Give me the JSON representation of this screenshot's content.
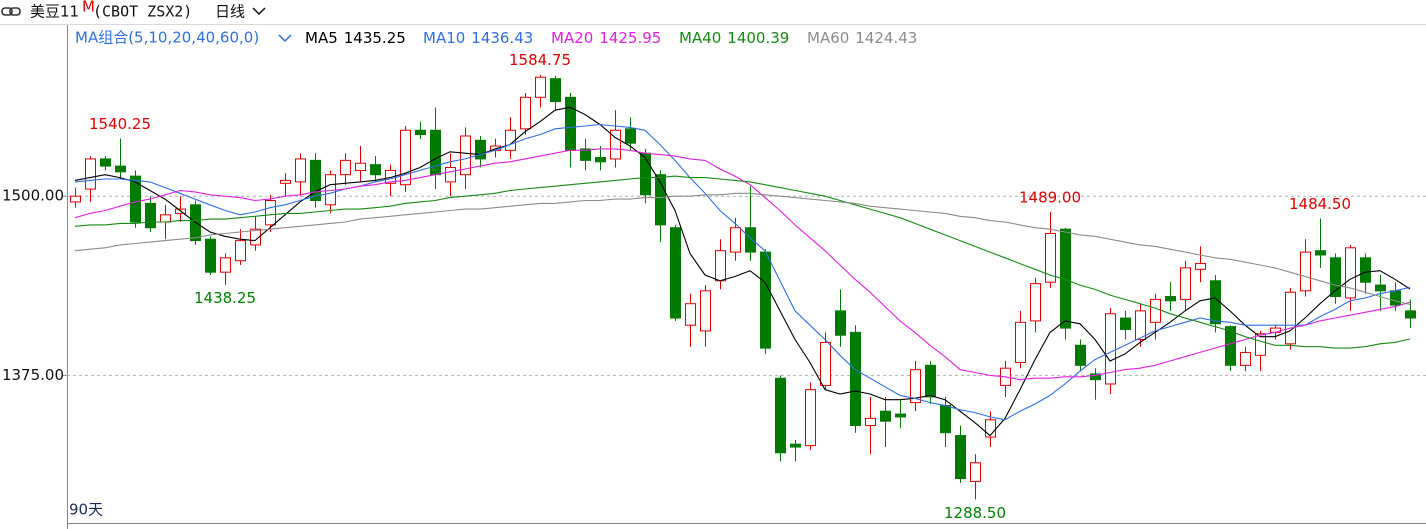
{
  "header": {
    "title": "美豆11",
    "badge": "M",
    "code": "(CBOT ZSX2)",
    "period": "日线"
  },
  "chart_data": {
    "type": "candlestick",
    "legend_title": "MA组合(5,10,20,40,60,0)",
    "footer": "90天",
    "ylim": [
      1272,
      1602
    ],
    "yticks": [
      {
        "value": 1500,
        "label": "1500.00"
      },
      {
        "value": 1375,
        "label": "1375.00"
      }
    ],
    "grid": true,
    "up_color": "#e00000",
    "down_color": "#007a00",
    "open": [
      1496,
      1505,
      1526,
      1521,
      1514,
      1495,
      1482,
      1488,
      1494,
      1470,
      1447,
      1455,
      1466,
      1480,
      1509,
      1510,
      1525,
      1494,
      1515,
      1518,
      1522,
      1509,
      1508,
      1546,
      1546,
      1510,
      1515,
      1539,
      1532,
      1532,
      1547,
      1569,
      1582,
      1569,
      1533,
      1527,
      1526,
      1547,
      1530,
      1515,
      1478,
      1410,
      1406,
      1441,
      1461,
      1478,
      1461,
      1373,
      1327,
      1326,
      1368,
      1420,
      1405,
      1340,
      1350,
      1348,
      1356,
      1382,
      1354,
      1333,
      1301,
      1332,
      1368,
      1384,
      1413,
      1440,
      1477,
      1396,
      1376,
      1369,
      1415,
      1400,
      1412,
      1430,
      1428,
      1449,
      1441,
      1409,
      1382,
      1389,
      1405,
      1397,
      1434,
      1462,
      1457,
      1429,
      1457,
      1438,
      1434,
      1420
    ],
    "high": [
      1506,
      1528,
      1528,
      1540.25,
      1518,
      1500,
      1494,
      1500,
      1497,
      1472,
      1460,
      1477,
      1486,
      1501,
      1516,
      1530,
      1530,
      1518,
      1530,
      1535,
      1528,
      1522,
      1549,
      1552,
      1562,
      1530,
      1548,
      1542,
      1540,
      1555,
      1572,
      1584.75,
      1584,
      1572,
      1540,
      1535,
      1560,
      1555,
      1533,
      1518,
      1480,
      1432,
      1438,
      1470,
      1485,
      1507,
      1463,
      1375,
      1330,
      1370,
      1405,
      1435,
      1410,
      1360,
      1360,
      1358,
      1385,
      1385,
      1360,
      1340,
      1320,
      1350,
      1385,
      1420,
      1443,
      1489,
      1478,
      1400,
      1380,
      1422,
      1420,
      1425,
      1432,
      1440,
      1455,
      1465,
      1445,
      1410,
      1395,
      1406,
      1410,
      1436,
      1470,
      1484.5,
      1460,
      1466,
      1460,
      1445,
      1440,
      1428
    ],
    "low": [
      1492,
      1496,
      1518,
      1512,
      1478,
      1475,
      1470,
      1482,
      1466,
      1445,
      1438.25,
      1452,
      1462,
      1475,
      1500,
      1500,
      1492,
      1488,
      1508,
      1510,
      1510,
      1500,
      1503,
      1540,
      1505,
      1500,
      1505,
      1520,
      1527,
      1526,
      1543,
      1562,
      1560,
      1520,
      1518,
      1518,
      1520,
      1532,
      1495,
      1468,
      1413,
      1395,
      1395,
      1435,
      1455,
      1455,
      1390,
      1315,
      1315,
      1323,
      1365,
      1395,
      1335,
      1320,
      1325,
      1338,
      1350,
      1355,
      1325,
      1300,
      1288.5,
      1325,
      1360,
      1380,
      1405,
      1436,
      1400,
      1378,
      1358,
      1362,
      1400,
      1395,
      1400,
      1420,
      1420,
      1440,
      1405,
      1378,
      1378,
      1378,
      1400,
      1393,
      1430,
      1450,
      1425,
      1420,
      1432,
      1420,
      1420,
      1408
    ],
    "close": [
      1500,
      1526,
      1521,
      1517,
      1482,
      1478,
      1487,
      1491,
      1469,
      1447,
      1457,
      1469,
      1477,
      1497,
      1511,
      1526,
      1497,
      1515,
      1525,
      1523,
      1515,
      1518,
      1546,
      1543,
      1515,
      1520,
      1542,
      1526,
      1535,
      1546,
      1569,
      1583,
      1566,
      1532,
      1525,
      1524,
      1546,
      1537,
      1501,
      1480,
      1415,
      1425,
      1434,
      1462,
      1478,
      1461,
      1394,
      1321,
      1325,
      1365,
      1398,
      1403,
      1340,
      1345,
      1343,
      1346,
      1379,
      1360,
      1335,
      1303,
      1314,
      1344,
      1380,
      1412,
      1439,
      1474,
      1408,
      1382,
      1372,
      1418,
      1407,
      1420,
      1428,
      1427,
      1450,
      1453,
      1411,
      1382,
      1391,
      1404,
      1408,
      1433,
      1461,
      1459,
      1430,
      1464,
      1440,
      1434,
      1424,
      1415
    ],
    "series": [
      {
        "name": "MA5",
        "color": "#000000",
        "values": [
          1511,
          1513,
          1515,
          1513,
          1510,
          1504,
          1498,
          1490,
          1482,
          1475,
          1472,
          1470,
          1469,
          1478,
          1487,
          1496,
          1503,
          1508,
          1509,
          1510,
          1511,
          1513,
          1516,
          1520,
          1526,
          1531,
          1530,
          1529,
          1533,
          1536,
          1545,
          1552,
          1560,
          1562,
          1557,
          1550,
          1541,
          1535,
          1527,
          1510,
          1490,
          1460,
          1445,
          1441,
          1444,
          1448,
          1440,
          1420,
          1400,
          1384,
          1365,
          1362,
          1364,
          1362,
          1358,
          1358,
          1359,
          1361,
          1358,
          1350,
          1342,
          1333,
          1345,
          1365,
          1386,
          1405,
          1413,
          1411,
          1400,
          1385,
          1390,
          1398,
          1405,
          1412,
          1420,
          1427,
          1429,
          1420,
          1410,
          1402,
          1402,
          1406,
          1415,
          1425,
          1434,
          1442,
          1447,
          1448,
          1442,
          1435.25
        ]
      },
      {
        "name": "MA10",
        "color": "#2f6fe0",
        "values": [
          1510,
          1511,
          1512,
          1512,
          1511,
          1510,
          1506,
          1502,
          1498,
          1494,
          1490,
          1487,
          1489,
          1492,
          1494,
          1497,
          1500,
          1502,
          1505,
          1507,
          1510,
          1512,
          1515,
          1518,
          1521,
          1524,
          1526,
          1529,
          1532,
          1536,
          1540,
          1543,
          1547,
          1548,
          1549,
          1550,
          1549,
          1548,
          1546,
          1536,
          1525,
          1513,
          1502,
          1490,
          1481,
          1471,
          1462,
          1441,
          1420,
          1410,
          1400,
          1389,
          1379,
          1373,
          1367,
          1361,
          1359,
          1356,
          1354,
          1351,
          1349,
          1346,
          1344,
          1350,
          1355,
          1361,
          1369,
          1378,
          1386,
          1391,
          1396,
          1401,
          1406,
          1409,
          1412,
          1415,
          1413,
          1412,
          1410,
          1410,
          1410,
          1410,
          1410,
          1416,
          1421,
          1427,
          1429,
          1432,
          1434,
          1436.43
        ]
      },
      {
        "name": "MA20",
        "color": "#e020e0",
        "values": [
          1485,
          1488,
          1490,
          1493,
          1496,
          1498,
          1501,
          1504,
          1503,
          1501,
          1500,
          1499,
          1497,
          1498,
          1500,
          1501,
          1503,
          1504,
          1505,
          1507,
          1508,
          1510,
          1511,
          1513,
          1515,
          1517,
          1519,
          1521,
          1523,
          1524,
          1526,
          1528,
          1530,
          1532,
          1532,
          1533,
          1533,
          1532,
          1530,
          1529,
          1528,
          1526,
          1525,
          1519,
          1514,
          1508,
          1499,
          1490,
          1480,
          1471,
          1462,
          1452,
          1442,
          1433,
          1423,
          1413,
          1405,
          1396,
          1388,
          1379,
          1377,
          1375,
          1374,
          1372,
          1373,
          1373,
          1374,
          1374,
          1375,
          1377,
          1379,
          1380,
          1382,
          1385,
          1388,
          1391,
          1394,
          1397,
          1400,
          1403,
          1405,
          1408,
          1410,
          1413,
          1415,
          1417,
          1419,
          1421,
          1423,
          1425.95
        ]
      },
      {
        "name": "MA40",
        "color": "#148c14",
        "values": [
          1479,
          1480,
          1480,
          1481,
          1481,
          1482,
          1482,
          1483,
          1483,
          1484,
          1484,
          1485,
          1486,
          1487,
          1488,
          1488,
          1489,
          1490,
          1491,
          1491,
          1492,
          1493,
          1495,
          1496,
          1497,
          1499,
          1500,
          1501,
          1502,
          1504,
          1505,
          1506,
          1507,
          1508,
          1509,
          1510,
          1511,
          1512,
          1513,
          1513,
          1514,
          1513,
          1513,
          1512,
          1511,
          1510,
          1508,
          1506,
          1504,
          1502,
          1500,
          1497,
          1494,
          1491,
          1488,
          1485,
          1481,
          1477,
          1473,
          1469,
          1465,
          1461,
          1457,
          1453,
          1449,
          1445,
          1442,
          1438,
          1435,
          1431,
          1428,
          1425,
          1422,
          1418,
          1415,
          1412,
          1409,
          1406,
          1402,
          1399,
          1396,
          1396,
          1395,
          1395,
          1394,
          1394,
          1395,
          1397,
          1398,
          1400.39
        ]
      },
      {
        "name": "MA60",
        "color": "#8c8c8c",
        "values": [
          1462,
          1463,
          1464,
          1466,
          1467,
          1468,
          1469,
          1470,
          1471,
          1473,
          1474,
          1475,
          1476,
          1477,
          1478,
          1479,
          1480,
          1481,
          1482,
          1484,
          1485,
          1486,
          1487,
          1488,
          1489,
          1490,
          1491,
          1491,
          1492,
          1493,
          1494,
          1495,
          1495,
          1496,
          1497,
          1497,
          1498,
          1498,
          1499,
          1499,
          1500,
          1500,
          1501,
          1501,
          1502,
          1502,
          1501,
          1500,
          1499,
          1498,
          1497,
          1496,
          1495,
          1493,
          1492,
          1491,
          1490,
          1489,
          1488,
          1486,
          1485,
          1483,
          1482,
          1480,
          1478,
          1477,
          1475,
          1473,
          1472,
          1470,
          1468,
          1466,
          1465,
          1463,
          1461,
          1459,
          1457,
          1456,
          1454,
          1452,
          1450,
          1447,
          1444,
          1441,
          1438,
          1436,
          1433,
          1430,
          1427,
          1424.43
        ]
      }
    ],
    "annotations": [
      {
        "label": "1540.25",
        "value": 1540.25,
        "x": 3,
        "color": "#e00000"
      },
      {
        "label": "1438.25",
        "value": 1438.25,
        "x": 10,
        "color": "#008000"
      },
      {
        "label": "1584.75",
        "value": 1584.75,
        "x": 31,
        "color": "#e00000"
      },
      {
        "label": "1288.50",
        "value": 1288.5,
        "x": 60,
        "color": "#008000"
      },
      {
        "label": "1489.00",
        "value": 1489,
        "x": 65,
        "color": "#e00000"
      },
      {
        "label": "1484.50",
        "value": 1484.5,
        "x": 83,
        "color": "#e00000"
      }
    ]
  }
}
